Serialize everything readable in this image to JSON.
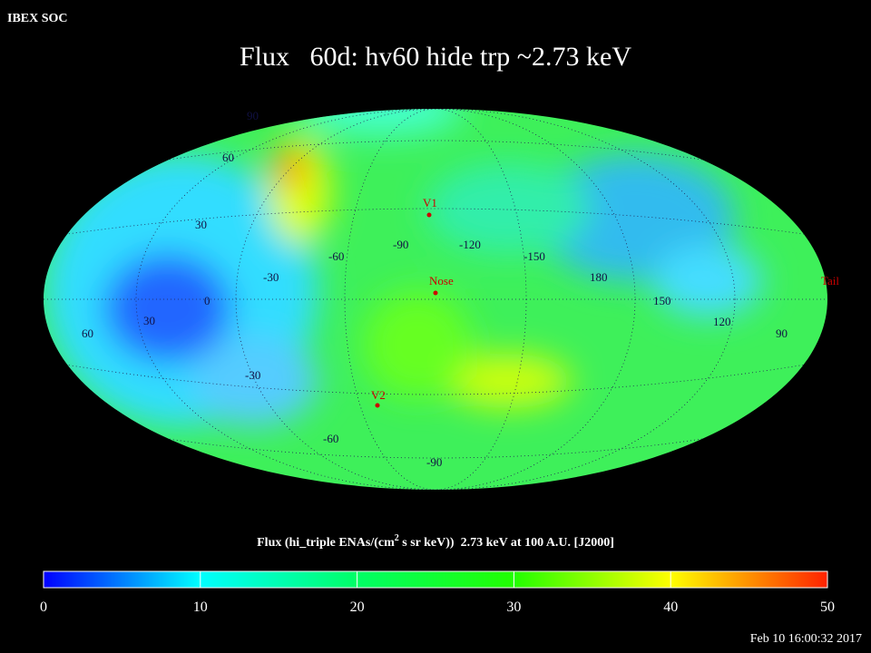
{
  "header": {
    "corner_label": "IBEX SOC",
    "title": "Flux   60d: hv60 hide trp ~2.73 keV"
  },
  "map": {
    "grid_labels": [
      "90",
      "60",
      "30",
      "0",
      "-30",
      "30",
      "60",
      "-30",
      "-60",
      "-90",
      "-60",
      "-90",
      "-120",
      "-150",
      "180",
      "150",
      "120",
      "90"
    ],
    "markers": [
      "V1",
      "Nose",
      "V2",
      "Tail"
    ]
  },
  "colorbar": {
    "title_parts": [
      "Flux (hi_triple ENAs/(cm",
      "2",
      " s sr keV))  2.73 keV at 100 A.U. [J2000]"
    ],
    "range": [
      0,
      50
    ],
    "ticks": [
      0,
      10,
      20,
      30,
      40,
      50
    ]
  },
  "footer": {
    "timestamp": "Feb 10 16:00:32 2017"
  }
}
